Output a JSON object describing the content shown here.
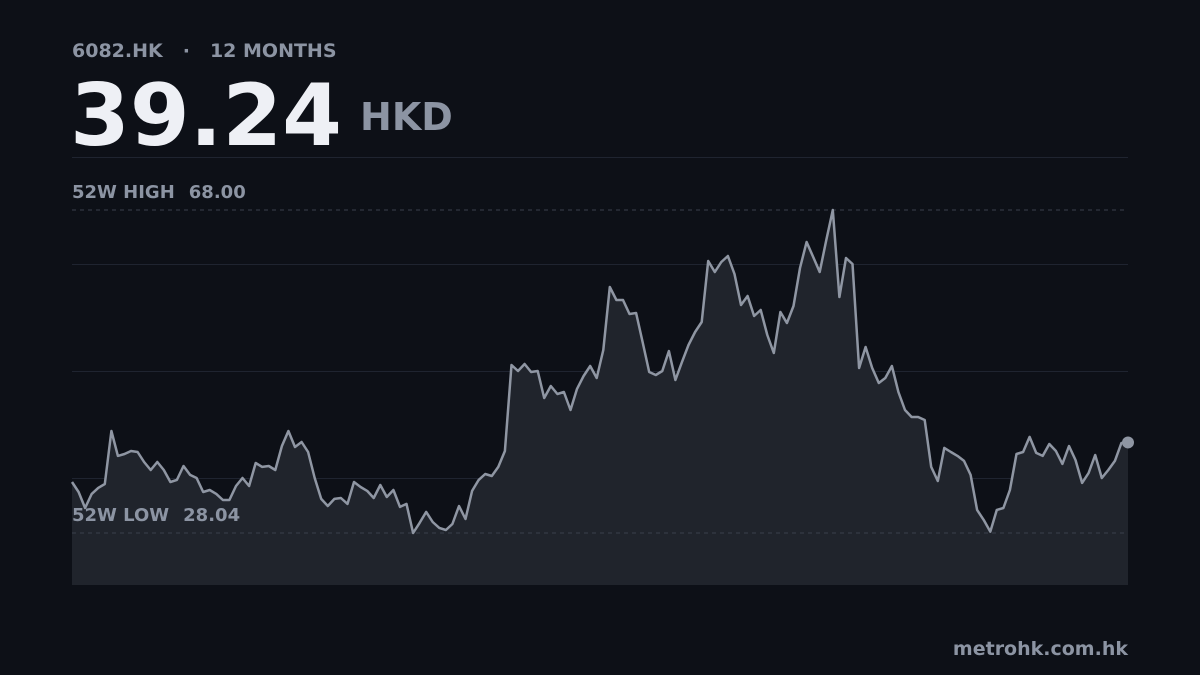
{
  "header": {
    "symbol": "6082.HK",
    "separator": "·",
    "period": "12 MONTHS",
    "price": 39.24,
    "currency": "HKD"
  },
  "chart_data": {
    "type": "line",
    "high": {
      "label": "52W HIGH",
      "value": 68,
      "value_label": "68.00"
    },
    "low": {
      "label": "52W LOW",
      "value": 28.04,
      "value_label": "28.04"
    },
    "ylim": [
      21.6,
      74.56
    ],
    "color": "#8f96a3",
    "values": [
      34.35,
      33.11,
      31.13,
      32.87,
      33.61,
      34.1,
      40.66,
      37.57,
      37.81,
      38.18,
      38.06,
      36.82,
      35.83,
      36.82,
      35.83,
      34.35,
      34.6,
      36.33,
      35.22,
      34.84,
      33.11,
      33.36,
      32.87,
      32.12,
      32.12,
      33.85,
      34.84,
      33.85,
      36.7,
      36.21,
      36.33,
      35.83,
      38.8,
      40.66,
      38.68,
      39.3,
      38.06,
      34.84,
      32.25,
      31.38,
      32.25,
      32.37,
      31.63,
      34.35,
      33.73,
      33.24,
      32.37,
      33.98,
      32.49,
      33.36,
      31.26,
      31.63,
      28.04,
      29.28,
      30.64,
      29.4,
      28.66,
      28.41,
      29.15,
      31.38,
      29.77,
      33.24,
      34.6,
      35.34,
      35.09,
      36.21,
      38.18,
      48.82,
      48.08,
      48.95,
      47.96,
      48.08,
      44.74,
      46.23,
      45.24,
      45.48,
      43.26,
      45.86,
      47.46,
      48.7,
      47.22,
      50.68,
      58.47,
      56.87,
      56.87,
      55.13,
      55.26,
      51.67,
      47.96,
      47.59,
      48.08,
      50.56,
      46.97,
      49.2,
      51.3,
      52.91,
      54.14,
      61.69,
      60.33,
      61.57,
      62.31,
      60.08,
      56.25,
      57.36,
      54.89,
      55.63,
      52.54,
      50.31,
      55.38,
      54.02,
      56.12,
      60.82,
      64.04,
      62.19,
      60.33,
      64.29,
      68.0,
      57.24,
      62.06,
      61.32,
      48.45,
      51.05,
      48.45,
      46.6,
      47.22,
      48.7,
      45.48,
      43.26,
      42.39,
      42.39,
      42.02,
      36.21,
      34.47,
      38.56,
      38.06,
      37.57,
      36.95,
      35.22,
      30.89,
      29.65,
      28.2,
      30.89,
      31.13,
      33.36,
      37.81,
      38.06,
      39.92,
      37.94,
      37.57,
      39.05,
      38.18,
      36.58,
      38.8,
      37.07,
      34.23,
      35.46,
      37.69,
      34.84,
      35.83,
      36.95,
      39.17,
      39.24
    ]
  },
  "footer": {
    "source": "metrohk.com.hk"
  }
}
